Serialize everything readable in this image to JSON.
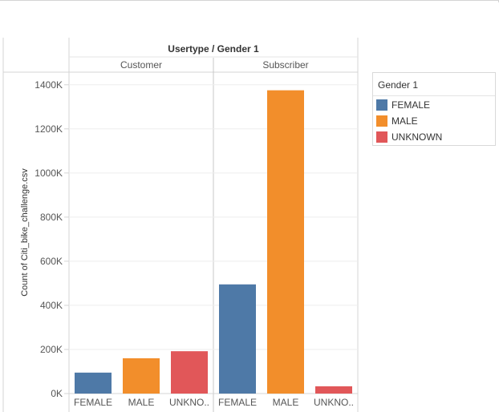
{
  "chart_data": {
    "type": "bar",
    "title": "Usertype / Gender 1",
    "ylabel": "Count of Citi_bike_challenge.csv",
    "xlabel": "",
    "ylim": [
      0,
      1450000
    ],
    "yticks": [
      0,
      200000,
      400000,
      600000,
      800000,
      1000000,
      1200000,
      1400000
    ],
    "ytick_labels": [
      "0K",
      "200K",
      "400K",
      "600K",
      "800K",
      "1000K",
      "1200K",
      "1400K"
    ],
    "grid": true,
    "legend_position": "top-right",
    "panes": [
      {
        "name": "Customer",
        "categories": [
          "FEMALE",
          "MALE",
          "UNKNO.."
        ],
        "values": [
          95000,
          160000,
          192000
        ]
      },
      {
        "name": "Subscriber",
        "categories": [
          "FEMALE",
          "MALE",
          "UNKNO.."
        ],
        "values": [
          495000,
          1375000,
          33000
        ]
      }
    ],
    "legend": {
      "title": "Gender 1",
      "items": [
        {
          "label": "FEMALE",
          "color": "#4e79a7"
        },
        {
          "label": "MALE",
          "color": "#f28e2b"
        },
        {
          "label": "UNKNOWN",
          "color": "#e15759"
        }
      ]
    }
  }
}
